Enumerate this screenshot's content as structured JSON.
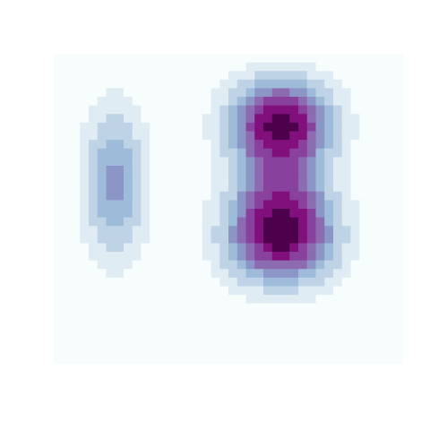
{
  "chart_data": {
    "type": "heatmap",
    "title": "",
    "xlabel": "",
    "ylabel": "",
    "legend": "none",
    "grid": false,
    "colormap": [
      "#f7fcfd",
      "#e0ecf4",
      "#bfd3e6",
      "#9ebcda",
      "#8c96c6",
      "#8c6bb1",
      "#88419d",
      "#810f7c",
      "#4d004b"
    ],
    "grid_size": [
      40,
      36
    ],
    "levels": 9,
    "components": [
      {
        "x": 26,
        "y": 8,
        "sx": 4.2,
        "sy": 3.6,
        "w": 1.0
      },
      {
        "x": 26,
        "y": 21,
        "sx": 4.4,
        "sy": 4.0,
        "w": 1.05
      },
      {
        "x": 26,
        "y": 14.5,
        "sx": 3.5,
        "sy": 3.0,
        "w": 0.33
      },
      {
        "x": 7,
        "y": 15,
        "sx": 2.6,
        "sy": 6.5,
        "w": 0.52
      }
    ]
  }
}
